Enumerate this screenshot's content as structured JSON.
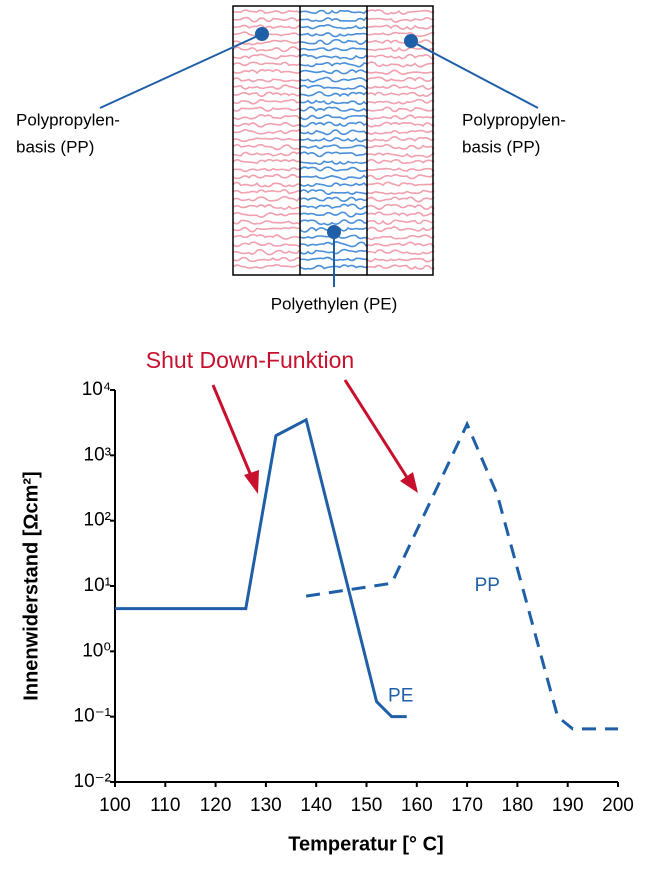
{
  "diagram": {
    "left_label": [
      "Polypropylen-",
      "basis  (PP)"
    ],
    "right_label": [
      "Polypropylen-",
      "basis  (PP)"
    ],
    "center_label": "Polyethylen   (PE)"
  },
  "chart_data": {
    "type": "line",
    "annotation": "Shut Down-Funktion",
    "xlabel": "Temperatur [° C]",
    "ylabel": "Innenwiderstand [Ωcm²]",
    "xlim": [
      100,
      200
    ],
    "xticks": [
      100,
      110,
      120,
      130,
      140,
      150,
      160,
      170,
      180,
      190,
      200
    ],
    "ylim": [
      0.01,
      10000
    ],
    "ylog": true,
    "yticks": [
      {
        "value": 0.01,
        "label": "10⁻²"
      },
      {
        "value": 0.1,
        "label": "10⁻¹"
      },
      {
        "value": 1,
        "label": "10⁰"
      },
      {
        "value": 10,
        "label": "10¹"
      },
      {
        "value": 100,
        "label": "10²"
      },
      {
        "value": 1000,
        "label": "10³"
      },
      {
        "value": 10000,
        "label": "10⁴"
      }
    ],
    "series": [
      {
        "name": "PE",
        "color": "#1f5fa8",
        "dashed": false,
        "x": [
          100,
          126,
          132,
          138,
          152,
          155,
          158
        ],
        "values": [
          4.5,
          4.5,
          2000,
          3500,
          0.17,
          0.1,
          0.1
        ]
      },
      {
        "name": "PP",
        "color": "#1f5fa8",
        "dashed": true,
        "x": [
          138,
          155,
          170,
          176,
          188,
          191,
          200
        ],
        "values": [
          7,
          11,
          3000,
          250,
          0.1,
          0.065,
          0.065
        ]
      }
    ]
  }
}
